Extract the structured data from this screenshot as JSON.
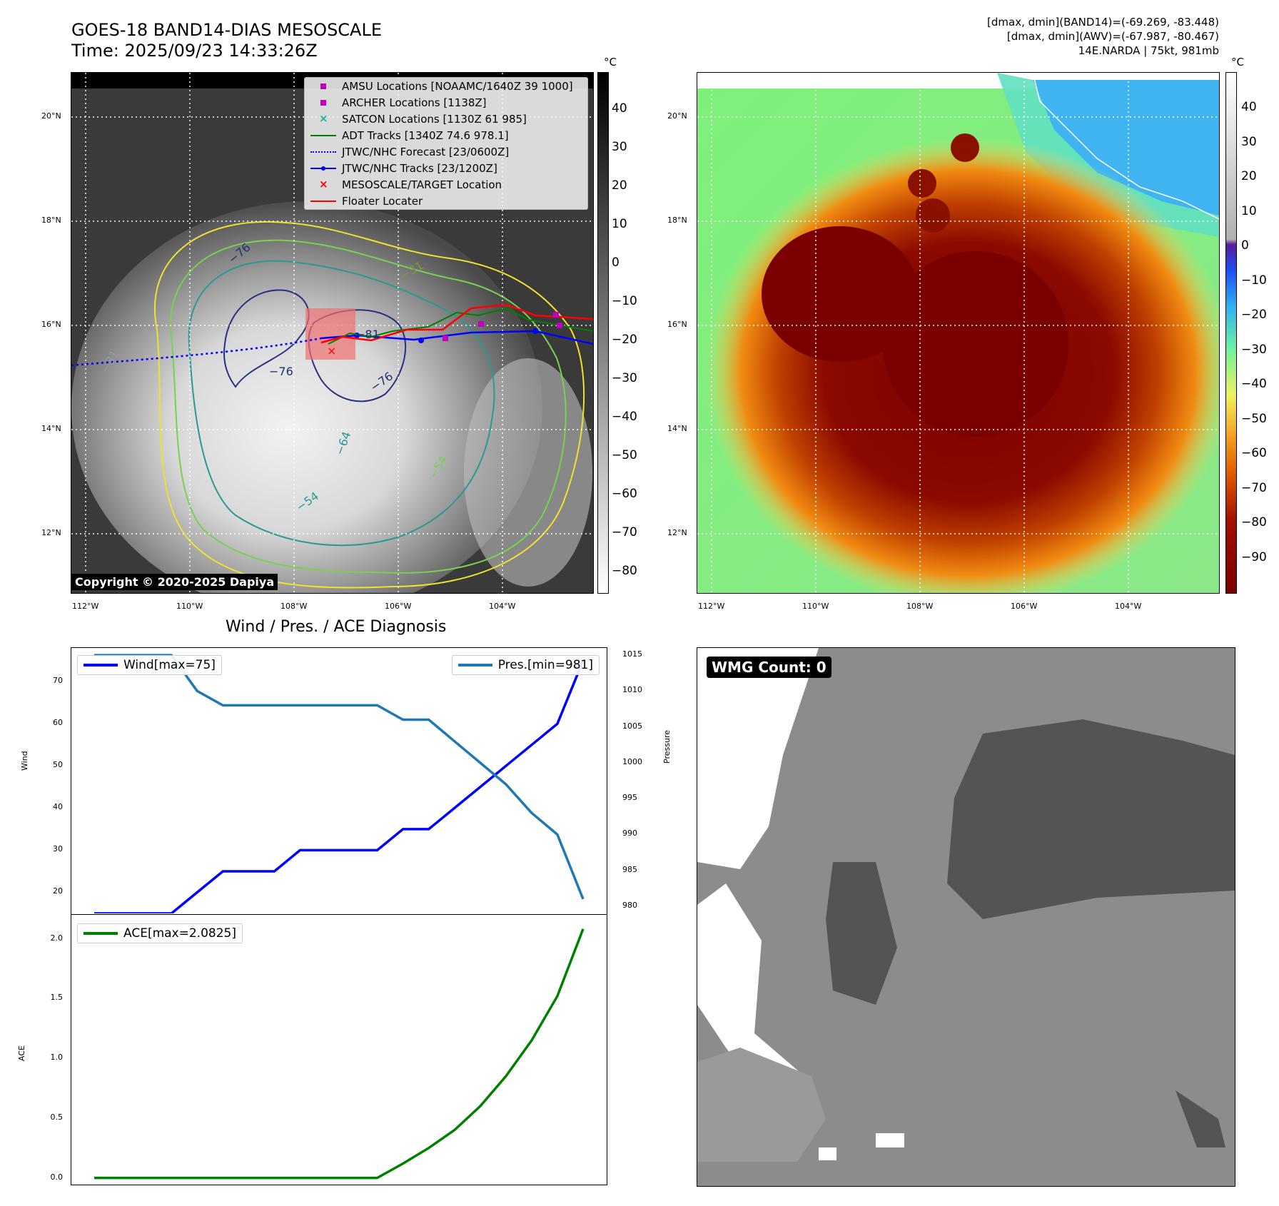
{
  "header": {
    "title_line1": "GOES-18 BAND14-DIAS MESOSCALE",
    "title_line2": "Time: 2025/09/23 14:33:26Z",
    "info_line1": "[dmax, dmin](BAND14)=(-69.269, -83.448)",
    "info_line2": "[dmax, dmin](AWV)=(-67.987, -80.467)",
    "info_line3": "14E.NARDA | 75kt, 981mb"
  },
  "map_left": {
    "lat_ticks": [
      "20°N",
      "18°N",
      "16°N",
      "14°N",
      "12°N"
    ],
    "lon_ticks": [
      "112°W",
      "110°W",
      "108°W",
      "106°W",
      "104°W"
    ],
    "copyright": "Copyright © 2020-2025 Dapiya",
    "colorbar_unit": "°C",
    "colorbar_ticks": [
      "40",
      "30",
      "20",
      "10",
      "0",
      "−10",
      "−20",
      "−30",
      "−40",
      "−50",
      "−60",
      "−70",
      "−80"
    ],
    "contour_labels": [
      "−76",
      "−76",
      "−76",
      "−81",
      "−64",
      "−31",
      "−31",
      "−54",
      "−54"
    ],
    "legend": [
      {
        "label": "AMSU Locations [NOAAMC/1640Z 39 1000]",
        "symbol": "square",
        "color": "#c000c0"
      },
      {
        "label": "ARCHER Locations [1138Z]",
        "symbol": "square",
        "color": "#c000c0"
      },
      {
        "label": "SATCON Locations [1130Z 61 985]",
        "symbol": "x",
        "color": "#20b0a0"
      },
      {
        "label": "ADT Tracks [1340Z 74.6 978.1]",
        "symbol": "line",
        "color": "#008000"
      },
      {
        "label": "JTWC/NHC Forecast [23/0600Z]",
        "symbol": "dotted",
        "color": "#0000ff"
      },
      {
        "label": "JTWC/NHC Tracks [23/1200Z]",
        "symbol": "line-dot",
        "color": "#0000ff"
      },
      {
        "label": "MESOSCALE/TARGET Location",
        "symbol": "x",
        "color": "#ff0000"
      },
      {
        "label": "Floater Locater",
        "symbol": "line",
        "color": "#ff0000"
      }
    ]
  },
  "map_right": {
    "lat_ticks": [
      "20°N",
      "18°N",
      "16°N",
      "14°N",
      "12°N"
    ],
    "lon_ticks": [
      "112°W",
      "110°W",
      "108°W",
      "106°W",
      "104°W"
    ],
    "colorbar_unit": "°C",
    "colorbar_ticks": [
      "40",
      "30",
      "20",
      "10",
      "0",
      "−10",
      "−20",
      "−30",
      "−40",
      "−50",
      "−60",
      "−70",
      "−80",
      "−90"
    ]
  },
  "wmg": {
    "label": "WMG Count: 0"
  },
  "chart_data": [
    {
      "type": "line",
      "title": "Wind / Pres. / ACE Diagnosis",
      "ylabel": "Wind",
      "ylabel_right": "Pressure",
      "x": [
        0,
        1,
        2,
        3,
        4,
        5,
        6,
        7,
        8,
        9,
        10,
        11,
        12,
        13,
        14,
        15,
        16,
        17,
        18,
        19
      ],
      "ylim": [
        15,
        78
      ],
      "ylim_right": [
        979,
        1016
      ],
      "yticks": [
        "20",
        "30",
        "40",
        "50",
        "60",
        "70"
      ],
      "yticks_right": [
        "980",
        "985",
        "990",
        "995",
        "1000",
        "1005",
        "1010",
        "1015"
      ],
      "series": [
        {
          "name": "Wind[max=75]",
          "axis": "left",
          "color": "#0000ff",
          "values": [
            15,
            15,
            15,
            15,
            20,
            25,
            25,
            25,
            30,
            30,
            30,
            30,
            35,
            35,
            40,
            45,
            50,
            55,
            60,
            75
          ]
        },
        {
          "name": "Pres.[min=981]",
          "axis": "right",
          "color": "#1f77b4",
          "values": [
            1015,
            1015,
            1015,
            1015,
            1010,
            1008,
            1008,
            1008,
            1008,
            1008,
            1008,
            1008,
            1006,
            1006,
            1003,
            1000,
            997,
            993,
            990,
            981
          ]
        }
      ]
    },
    {
      "type": "line",
      "ylabel": "ACE",
      "x": [
        0,
        1,
        2,
        3,
        4,
        5,
        6,
        7,
        8,
        9,
        10,
        11,
        12,
        13,
        14,
        15,
        16,
        17,
        18,
        19
      ],
      "ylim": [
        -0.05,
        2.2
      ],
      "yticks": [
        "0.0",
        "0.5",
        "1.0",
        "1.5",
        "2.0"
      ],
      "series": [
        {
          "name": "ACE[max=2.0825]",
          "axis": "left",
          "color": "#008000",
          "values": [
            0,
            0,
            0,
            0,
            0,
            0,
            0,
            0,
            0,
            0,
            0,
            0,
            0.12,
            0.25,
            0.4,
            0.6,
            0.85,
            1.15,
            1.52,
            2.0825
          ]
        }
      ]
    }
  ]
}
